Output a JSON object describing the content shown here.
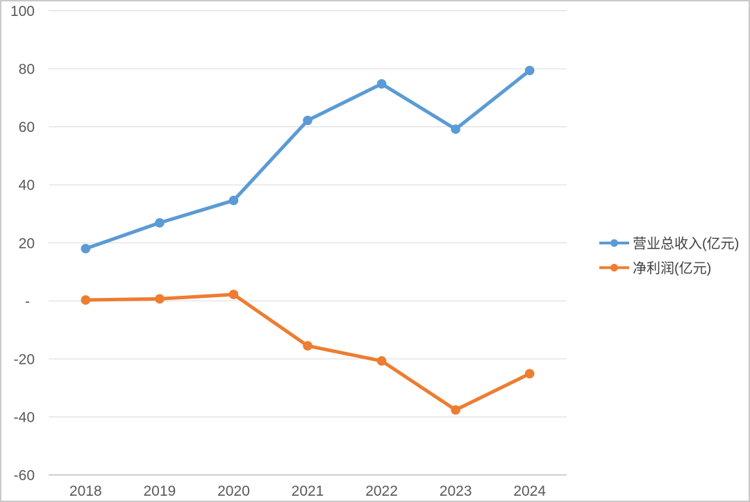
{
  "chart_data": {
    "type": "line",
    "title": "",
    "categories": [
      "2018",
      "2019",
      "2020",
      "2021",
      "2022",
      "2023",
      "2024"
    ],
    "series": [
      {
        "name": "营业总收入(亿元)",
        "color": "#5B9BD5",
        "values": [
          18.0,
          26.9,
          34.6,
          62.2,
          74.8,
          59.2,
          79.4
        ]
      },
      {
        "name": "净利润(亿元)",
        "color": "#ED7D31",
        "values": [
          0.3,
          0.7,
          2.2,
          -15.5,
          -20.7,
          -37.6,
          -25.1
        ]
      }
    ],
    "y_axis": {
      "min": -60,
      "max": 100,
      "step": 20,
      "tick_labels": [
        "100",
        "80",
        "60",
        "40",
        "20",
        "-",
        "-20",
        "-40",
        "-60"
      ],
      "tick_values": [
        100,
        80,
        60,
        40,
        20,
        0,
        -20,
        -40,
        -60
      ]
    },
    "x_axis": {
      "tick_labels": [
        "2018",
        "2019",
        "2020",
        "2021",
        "2022",
        "2023",
        "2024"
      ]
    },
    "legend_position": "right",
    "grid": true,
    "marker": "circle",
    "colors": {
      "gridline": "#D9D9D9",
      "axis_line": "#BFBFBF",
      "tick_text": "#595959",
      "legend_text": "#404040",
      "background": "#FFFFFF",
      "frame_border": "#C9C9C9"
    }
  }
}
